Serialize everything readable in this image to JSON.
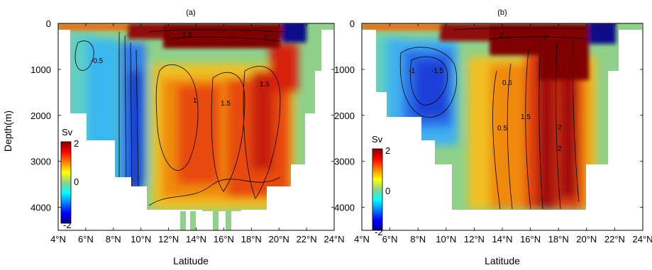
{
  "figure": {
    "panels": [
      {
        "id": "a",
        "title": "(a)",
        "xlabel": "Latitude",
        "ylabel": "Depth(m)",
        "x_ticks": [
          "4°N",
          "6°N",
          "8°N",
          "10°N",
          "12°N",
          "14°N",
          "16°N",
          "18°N",
          "20°N",
          "22°N",
          "24°N"
        ],
        "y_ticks": [
          "0",
          "1000",
          "2000",
          "3000",
          "4000"
        ],
        "colorbar": {
          "label": "Sv",
          "ticks": [
            "2",
            "0",
            "-2"
          ]
        },
        "contour_labels": [
          "-0.5",
          "1.5",
          "2",
          "1",
          "1.5",
          "1.5"
        ]
      },
      {
        "id": "b",
        "title": "(b)",
        "xlabel": "Latitude",
        "ylabel": "",
        "x_ticks": [
          "4°N",
          "6°N",
          "8°N",
          "10°N",
          "12°N",
          "14°N",
          "16°N",
          "18°N",
          "20°N",
          "22°N",
          "24°N"
        ],
        "y_ticks": [
          "0",
          "1000",
          "2000",
          "3000",
          "4000"
        ],
        "colorbar": {
          "label": "Sv",
          "ticks": [
            "2",
            "0",
            "-2"
          ]
        },
        "contour_labels": [
          "-1",
          "-1.5",
          "2",
          "2",
          "0.5",
          "1.5",
          "0.5",
          "2",
          "2"
        ]
      }
    ]
  },
  "chart_data": [
    {
      "type": "heatmap",
      "title": "(a)",
      "xlabel": "Latitude",
      "ylabel": "Depth(m)",
      "xlim": [
        4,
        24
      ],
      "ylim": [
        4500,
        0
      ],
      "colorbar": {
        "label": "Sv",
        "range": [
          -2,
          2
        ],
        "colormap": "jet"
      },
      "features": [
        {
          "lat_range": [
            7,
            11
          ],
          "depth_range": [
            0,
            4000
          ],
          "value": -1,
          "description": "negative transport band"
        },
        {
          "lat_range": [
            12,
            20
          ],
          "depth_range": [
            500,
            4000
          ],
          "value": 1.5,
          "description": "positive transport core"
        },
        {
          "lat_range": [
            8,
            20
          ],
          "depth_range": [
            0,
            200
          ],
          "value": 2,
          "description": "surface positive layer"
        },
        {
          "lat_range": [
            20,
            21.5
          ],
          "depth_range": [
            0,
            300
          ],
          "value": -2,
          "description": "surface negative cell"
        }
      ]
    },
    {
      "type": "heatmap",
      "title": "(b)",
      "xlabel": "Latitude",
      "ylabel": "Depth(m)",
      "xlim": [
        4,
        24
      ],
      "ylim": [
        4500,
        0
      ],
      "colorbar": {
        "label": "Sv",
        "range": [
          -2,
          2
        ],
        "colormap": "jet"
      },
      "features": [
        {
          "lat_range": [
            7,
            11
          ],
          "depth_range": [
            300,
            2200
          ],
          "value": -1.5,
          "description": "negative transport core"
        },
        {
          "lat_range": [
            15,
            20
          ],
          "depth_range": [
            0,
            4000
          ],
          "value": 2,
          "description": "positive transport core"
        },
        {
          "lat_range": [
            10,
            20
          ],
          "depth_range": [
            0,
            300
          ],
          "value": 2,
          "description": "surface positive layer"
        },
        {
          "lat_range": [
            20.5,
            22
          ],
          "depth_range": [
            0,
            300
          ],
          "value": -2,
          "description": "surface negative cell"
        }
      ]
    }
  ]
}
